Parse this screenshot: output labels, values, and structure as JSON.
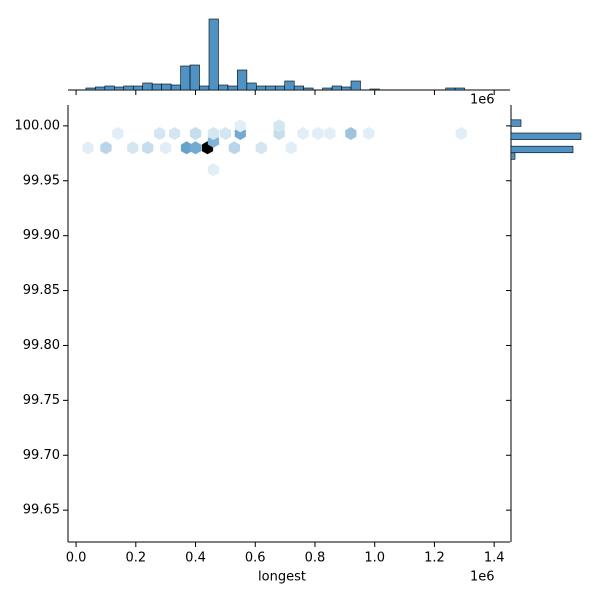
{
  "chart_data": {
    "type": "hexjoint",
    "x_label": "longest",
    "x_offset_label": "1e6",
    "xlim": [
      -0.027,
      1.453
    ],
    "xticks": [
      {
        "value": 0,
        "label": "0.0"
      },
      {
        "value": 0.2,
        "label": "0.2"
      },
      {
        "value": 0.4,
        "label": "0.4"
      },
      {
        "value": 0.6,
        "label": "0.6"
      },
      {
        "value": 0.8,
        "label": "0.8"
      },
      {
        "value": 1.0,
        "label": "1.0"
      },
      {
        "value": 1.2,
        "label": "1.2"
      },
      {
        "value": 1.4,
        "label": "1.4"
      }
    ],
    "ylim": [
      99.621,
      100.019
    ],
    "yticks": [
      {
        "value": 99.65,
        "label": "99.65"
      },
      {
        "value": 99.7,
        "label": "99.70"
      },
      {
        "value": 99.75,
        "label": "99.75"
      },
      {
        "value": 99.8,
        "label": "99.80"
      },
      {
        "value": 99.85,
        "label": "99.85"
      },
      {
        "value": 99.9,
        "label": "99.90"
      },
      {
        "value": 99.95,
        "label": "99.95"
      },
      {
        "value": 100,
        "label": "100.00"
      }
    ],
    "hex_color": "#1f77b4",
    "bar_color": "#4f93c6",
    "hexbins": {
      "x": [
        0.44,
        0.37,
        0.4,
        0.55,
        0.92,
        0.46,
        0.53,
        0.1,
        0.24,
        0.19,
        0.04,
        0.28,
        0.33,
        0.4,
        0.46,
        0.5,
        0.68,
        0.76,
        0.14,
        0.62,
        0.68,
        0.55,
        0.81,
        1.29,
        0.46,
        0.3,
        0.85,
        0.98,
        0.72
      ],
      "y": [
        99.98,
        99.98,
        99.98,
        99.993,
        99.993,
        99.986,
        99.98,
        99.98,
        99.98,
        99.98,
        99.98,
        99.993,
        99.993,
        99.993,
        99.993,
        99.993,
        99.993,
        99.993,
        99.993,
        99.98,
        100.0,
        100.0,
        99.993,
        99.993,
        99.96,
        99.98,
        99.993,
        99.993,
        99.98
      ],
      "counts": [
        30,
        10,
        9,
        9,
        6,
        8,
        4,
        4,
        3,
        2,
        1,
        2,
        2,
        3,
        2,
        2,
        3,
        1,
        1,
        2,
        2,
        1,
        1,
        1,
        1,
        1,
        1,
        1,
        1
      ]
    },
    "x_hist": {
      "bins": [
        0.033,
        0.0647,
        0.0964,
        0.1281,
        0.1598,
        0.1915,
        0.2232,
        0.2549,
        0.2866,
        0.3183,
        0.35,
        0.3817,
        0.4134,
        0.4451,
        0.4768,
        0.5085,
        0.5402,
        0.5719,
        0.6036,
        0.6353,
        0.667,
        0.6987,
        0.7304,
        0.7621,
        0.7938,
        0.8255,
        0.8572,
        0.8889,
        0.9206,
        0.9523,
        0.984,
        1.0157,
        1.0474,
        1.0791,
        1.1108,
        1.1425,
        1.1742,
        1.2059,
        1.2376,
        1.2693,
        1.301,
        1.3327,
        1.3644,
        1.3961
      ],
      "counts": [
        2,
        3,
        4,
        3,
        4,
        4,
        7,
        6,
        6,
        5,
        24,
        25,
        4,
        71,
        5,
        4,
        20,
        7,
        4,
        4,
        4,
        9,
        4,
        2,
        0,
        2,
        4,
        3,
        9,
        0,
        1,
        0,
        0,
        0,
        0,
        0,
        0,
        0,
        2,
        2,
        0,
        0,
        0
      ],
      "ylim": [
        0,
        75
      ]
    },
    "y_hist": {
      "bins": [
        99.9695,
        99.9755,
        99.9815,
        99.9875,
        99.9935,
        99.9995,
        100.0055
      ],
      "counts": [
        4,
        62,
        0,
        70,
        0,
        10
      ],
      "xlim": [
        0,
        72
      ]
    }
  }
}
